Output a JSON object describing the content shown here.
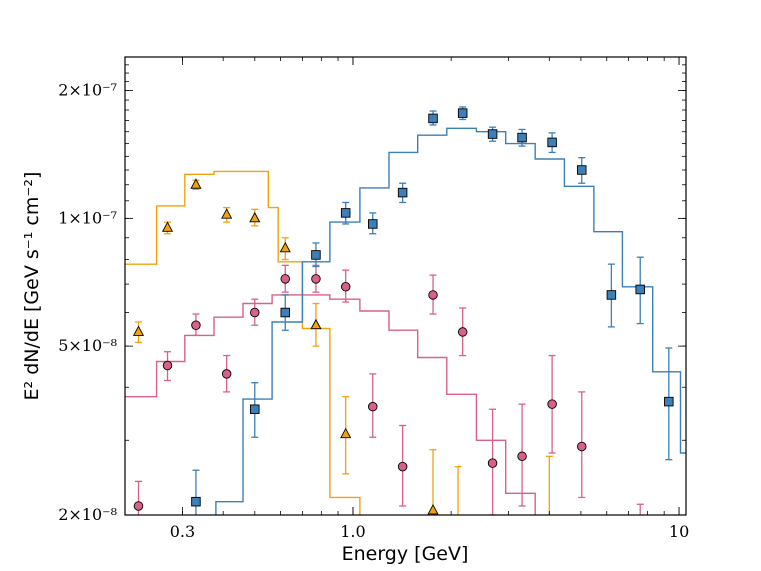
{
  "chart_data": {
    "type": "scatter",
    "title": "",
    "xlabel": "Energy [GeV]",
    "ylabel": "E² dN/dE [GeV s⁻¹ cm⁻²]",
    "xscale": "log",
    "yscale": "log",
    "xlim": [
      0.2,
      10.5
    ],
    "ylim": [
      2e-08,
      2.4e-07
    ],
    "grid": false,
    "legend": "none",
    "x_ticks": [
      {
        "value": 0.3,
        "label": "0.3"
      },
      {
        "value": 1.0,
        "label": "1.0"
      },
      {
        "value": 10,
        "label": "10"
      }
    ],
    "y_ticks": [
      {
        "value": 2e-08,
        "label": "2×10⁻⁸"
      },
      {
        "value": 5e-08,
        "label": "5×10⁻⁸"
      },
      {
        "value": 1e-07,
        "label": "1×10⁻⁷"
      },
      {
        "value": 2e-07,
        "label": "2×10⁻⁷"
      }
    ],
    "series": [
      {
        "color": "#f2a20d",
        "marker": "triangle",
        "points": [
          {
            "x": 0.22,
            "y": 5.4e-08,
            "lo": 5.1e-08,
            "hi": 5.7e-08
          },
          {
            "x": 0.27,
            "y": 9.5e-08,
            "lo": 9.2e-08,
            "hi": 9.8e-08
          },
          {
            "x": 0.33,
            "y": 1.2e-07,
            "lo": 1.17e-07,
            "hi": 1.23e-07
          },
          {
            "x": 0.41,
            "y": 1.02e-07,
            "lo": 9.8e-08,
            "hi": 1.06e-07
          },
          {
            "x": 0.5,
            "y": 1e-07,
            "lo": 9.6e-08,
            "hi": 1.05e-07
          },
          {
            "x": 0.62,
            "y": 8.5e-08,
            "lo": 8e-08,
            "hi": 9e-08
          },
          {
            "x": 0.77,
            "y": 5.6e-08,
            "lo": 5e-08,
            "hi": 6.3e-08
          },
          {
            "x": 0.95,
            "y": 3.1e-08,
            "lo": 2.5e-08,
            "hi": 3.8e-08
          },
          {
            "x": 1.76,
            "y": 2.05e-08,
            "lo": 1.8e-08,
            "hi": 2.85e-08
          }
        ],
        "upper_limits": [
          {
            "x": 2.1,
            "from": 1.9e-08,
            "to": 2.6e-08
          },
          {
            "x": 4.0,
            "from": 1.9e-08,
            "to": 2.75e-08
          }
        ],
        "model": [
          {
            "x": 0.2,
            "y": 7.8e-08
          },
          {
            "x": 0.25,
            "y": 7.8e-08
          },
          {
            "x": 0.25,
            "y": 1.07e-07
          },
          {
            "x": 0.305,
            "y": 1.07e-07
          },
          {
            "x": 0.305,
            "y": 1.27e-07
          },
          {
            "x": 0.375,
            "y": 1.27e-07
          },
          {
            "x": 0.375,
            "y": 1.29e-07
          },
          {
            "x": 0.55,
            "y": 1.29e-07
          },
          {
            "x": 0.55,
            "y": 1.06e-07
          },
          {
            "x": 0.59,
            "y": 1.06e-07
          },
          {
            "x": 0.59,
            "y": 7.9e-08
          },
          {
            "x": 0.7,
            "y": 7.9e-08
          },
          {
            "x": 0.7,
            "y": 5.5e-08
          },
          {
            "x": 0.85,
            "y": 5.5e-08
          },
          {
            "x": 0.85,
            "y": 2.2e-08
          },
          {
            "x": 1.05,
            "y": 2.2e-08
          },
          {
            "x": 1.05,
            "y": 1.9e-08
          }
        ]
      },
      {
        "color": "#d9608a",
        "marker": "circle",
        "points": [
          {
            "x": 0.22,
            "y": 2.1e-08,
            "lo": 1.9e-08,
            "hi": 2.4e-08
          },
          {
            "x": 0.27,
            "y": 4.5e-08,
            "lo": 4.15e-08,
            "hi": 4.85e-08
          },
          {
            "x": 0.33,
            "y": 5.6e-08,
            "lo": 5.3e-08,
            "hi": 5.95e-08
          },
          {
            "x": 0.41,
            "y": 4.3e-08,
            "lo": 3.9e-08,
            "hi": 4.75e-08
          },
          {
            "x": 0.5,
            "y": 6e-08,
            "lo": 5.6e-08,
            "hi": 6.45e-08
          },
          {
            "x": 0.62,
            "y": 7.2e-08,
            "lo": 6.7e-08,
            "hi": 7.75e-08
          },
          {
            "x": 0.77,
            "y": 7.2e-08,
            "lo": 6.7e-08,
            "hi": 7.75e-08
          },
          {
            "x": 0.95,
            "y": 6.9e-08,
            "lo": 6.35e-08,
            "hi": 7.55e-08
          },
          {
            "x": 1.15,
            "y": 3.6e-08,
            "lo": 3.05e-08,
            "hi": 4.3e-08
          },
          {
            "x": 1.42,
            "y": 2.6e-08,
            "lo": 2.1e-08,
            "hi": 3.25e-08
          },
          {
            "x": 1.76,
            "y": 6.6e-08,
            "lo": 5.95e-08,
            "hi": 7.35e-08
          },
          {
            "x": 2.17,
            "y": 5.4e-08,
            "lo": 4.75e-08,
            "hi": 6.15e-08
          },
          {
            "x": 2.68,
            "y": 2.65e-08,
            "lo": 2e-08,
            "hi": 3.55e-08
          },
          {
            "x": 3.3,
            "y": 2.75e-08,
            "lo": 2.1e-08,
            "hi": 3.65e-08
          },
          {
            "x": 4.08,
            "y": 3.65e-08,
            "lo": 2.8e-08,
            "hi": 4.75e-08
          },
          {
            "x": 5.03,
            "y": 2.9e-08,
            "lo": 2.2e-08,
            "hi": 3.9e-08
          }
        ],
        "upper_limits": [
          {
            "x": 7.6,
            "from": 1.9e-08,
            "to": 2.12e-08
          }
        ],
        "model": [
          {
            "x": 0.2,
            "y": 3.8e-08
          },
          {
            "x": 0.25,
            "y": 3.8e-08
          },
          {
            "x": 0.25,
            "y": 4.6e-08
          },
          {
            "x": 0.305,
            "y": 4.6e-08
          },
          {
            "x": 0.305,
            "y": 5.3e-08
          },
          {
            "x": 0.375,
            "y": 5.3e-08
          },
          {
            "x": 0.375,
            "y": 5.85e-08
          },
          {
            "x": 0.46,
            "y": 5.85e-08
          },
          {
            "x": 0.46,
            "y": 6.3e-08
          },
          {
            "x": 0.565,
            "y": 6.3e-08
          },
          {
            "x": 0.565,
            "y": 6.6e-08
          },
          {
            "x": 0.85,
            "y": 6.6e-08
          },
          {
            "x": 0.85,
            "y": 6.45e-08
          },
          {
            "x": 1.05,
            "y": 6.45e-08
          },
          {
            "x": 1.05,
            "y": 6.05e-08
          },
          {
            "x": 1.29,
            "y": 6.05e-08
          },
          {
            "x": 1.29,
            "y": 5.45e-08
          },
          {
            "x": 1.58,
            "y": 5.45e-08
          },
          {
            "x": 1.58,
            "y": 4.7e-08
          },
          {
            "x": 1.94,
            "y": 4.7e-08
          },
          {
            "x": 1.94,
            "y": 3.85e-08
          },
          {
            "x": 2.39,
            "y": 3.85e-08
          },
          {
            "x": 2.39,
            "y": 3e-08
          },
          {
            "x": 2.94,
            "y": 3e-08
          },
          {
            "x": 2.94,
            "y": 2.25e-08
          },
          {
            "x": 3.62,
            "y": 2.25e-08
          },
          {
            "x": 3.62,
            "y": 1.9e-08
          }
        ]
      },
      {
        "color": "#3d7fb8",
        "marker": "square",
        "points": [
          {
            "x": 0.33,
            "y": 2.15e-08,
            "lo": 1.9e-08,
            "hi": 2.55e-08
          },
          {
            "x": 0.5,
            "y": 3.55e-08,
            "lo": 3.05e-08,
            "hi": 4.1e-08
          },
          {
            "x": 0.62,
            "y": 6e-08,
            "lo": 5.45e-08,
            "hi": 6.6e-08
          },
          {
            "x": 0.77,
            "y": 8.2e-08,
            "lo": 7.7e-08,
            "hi": 8.75e-08
          },
          {
            "x": 0.95,
            "y": 1.03e-07,
            "lo": 9.7e-08,
            "hi": 1.09e-07
          },
          {
            "x": 1.15,
            "y": 9.7e-08,
            "lo": 9.2e-08,
            "hi": 1.03e-07
          },
          {
            "x": 1.42,
            "y": 1.15e-07,
            "lo": 1.09e-07,
            "hi": 1.21e-07
          },
          {
            "x": 1.76,
            "y": 1.72e-07,
            "lo": 1.66e-07,
            "hi": 1.79e-07
          },
          {
            "x": 2.17,
            "y": 1.77e-07,
            "lo": 1.71e-07,
            "hi": 1.83e-07
          },
          {
            "x": 2.68,
            "y": 1.58e-07,
            "lo": 1.52e-07,
            "hi": 1.64e-07
          },
          {
            "x": 3.3,
            "y": 1.55e-07,
            "lo": 1.48e-07,
            "hi": 1.62e-07
          },
          {
            "x": 4.08,
            "y": 1.51e-07,
            "lo": 1.43e-07,
            "hi": 1.59e-07
          },
          {
            "x": 5.03,
            "y": 1.3e-07,
            "lo": 1.21e-07,
            "hi": 1.39e-07
          },
          {
            "x": 6.2,
            "y": 6.6e-08,
            "lo": 5.55e-08,
            "hi": 7.8e-08
          },
          {
            "x": 7.6,
            "y": 6.8e-08,
            "lo": 5.65e-08,
            "hi": 8.1e-08
          },
          {
            "x": 9.3,
            "y": 3.7e-08,
            "lo": 2.7e-08,
            "hi": 4.95e-08
          }
        ],
        "upper_limits": [],
        "model": [
          {
            "x": 0.38,
            "y": 1.9e-08
          },
          {
            "x": 0.38,
            "y": 2.15e-08
          },
          {
            "x": 0.46,
            "y": 2.15e-08
          },
          {
            "x": 0.46,
            "y": 3.75e-08
          },
          {
            "x": 0.565,
            "y": 3.75e-08
          },
          {
            "x": 0.565,
            "y": 5.7e-08
          },
          {
            "x": 0.7,
            "y": 5.7e-08
          },
          {
            "x": 0.7,
            "y": 7.9e-08
          },
          {
            "x": 0.85,
            "y": 7.9e-08
          },
          {
            "x": 0.85,
            "y": 9.8e-08
          },
          {
            "x": 1.05,
            "y": 9.8e-08
          },
          {
            "x": 1.05,
            "y": 1.18e-07
          },
          {
            "x": 1.29,
            "y": 1.18e-07
          },
          {
            "x": 1.29,
            "y": 1.43e-07
          },
          {
            "x": 1.58,
            "y": 1.43e-07
          },
          {
            "x": 1.58,
            "y": 1.57e-07
          },
          {
            "x": 1.94,
            "y": 1.57e-07
          },
          {
            "x": 1.94,
            "y": 1.63e-07
          },
          {
            "x": 2.39,
            "y": 1.63e-07
          },
          {
            "x": 2.39,
            "y": 1.6e-07
          },
          {
            "x": 2.94,
            "y": 1.6e-07
          },
          {
            "x": 2.94,
            "y": 1.5e-07
          },
          {
            "x": 3.62,
            "y": 1.5e-07
          },
          {
            "x": 3.62,
            "y": 1.38e-07
          },
          {
            "x": 4.45,
            "y": 1.38e-07
          },
          {
            "x": 4.45,
            "y": 1.19e-07
          },
          {
            "x": 5.48,
            "y": 1.19e-07
          },
          {
            "x": 5.48,
            "y": 9.3e-08
          },
          {
            "x": 6.7,
            "y": 9.3e-08
          },
          {
            "x": 6.7,
            "y": 6.9e-08
          },
          {
            "x": 8.3,
            "y": 6.9e-08
          },
          {
            "x": 8.3,
            "y": 4.35e-08
          },
          {
            "x": 10.1,
            "y": 4.35e-08
          },
          {
            "x": 10.1,
            "y": 2.8e-08
          },
          {
            "x": 10.5,
            "y": 2.8e-08
          }
        ]
      }
    ]
  }
}
